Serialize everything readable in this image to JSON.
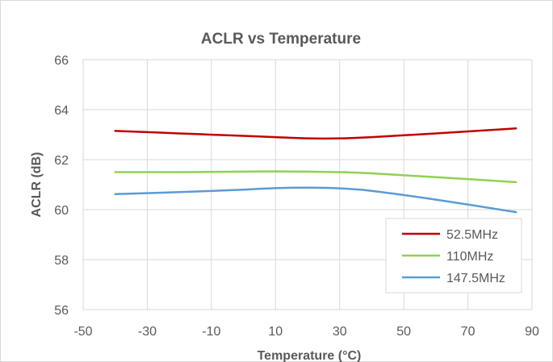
{
  "chart_data": {
    "type": "line",
    "title": "ACLR vs Temperature",
    "xlabel": "Temperature (°C)",
    "ylabel": "ACLR (dB)",
    "xlim": [
      -50,
      90
    ],
    "ylim": [
      56,
      66
    ],
    "x_ticks": [
      -50,
      -30,
      -10,
      10,
      30,
      50,
      70,
      90
    ],
    "y_ticks": [
      56,
      58,
      60,
      62,
      64,
      66
    ],
    "grid": true,
    "legend_position": "bottom-right",
    "series": [
      {
        "name": "52.5MHz",
        "color": "#c00000",
        "x": [
          -40,
          -20,
          0,
          10,
          20,
          30,
          40,
          60,
          85
        ],
        "y": [
          63.15,
          63.05,
          62.95,
          62.9,
          62.85,
          62.85,
          62.9,
          63.05,
          63.25
        ]
      },
      {
        "name": "110MHz",
        "color": "#92d050",
        "x": [
          -40,
          -20,
          0,
          10,
          20,
          30,
          40,
          60,
          85
        ],
        "y": [
          61.5,
          61.5,
          61.52,
          61.53,
          61.52,
          61.5,
          61.45,
          61.3,
          61.1
        ]
      },
      {
        "name": "147.5MHz",
        "color": "#5b9bd5",
        "x": [
          -40,
          -20,
          0,
          10,
          20,
          30,
          40,
          60,
          85
        ],
        "y": [
          60.62,
          60.7,
          60.8,
          60.86,
          60.88,
          60.85,
          60.75,
          60.4,
          59.9
        ]
      }
    ]
  }
}
